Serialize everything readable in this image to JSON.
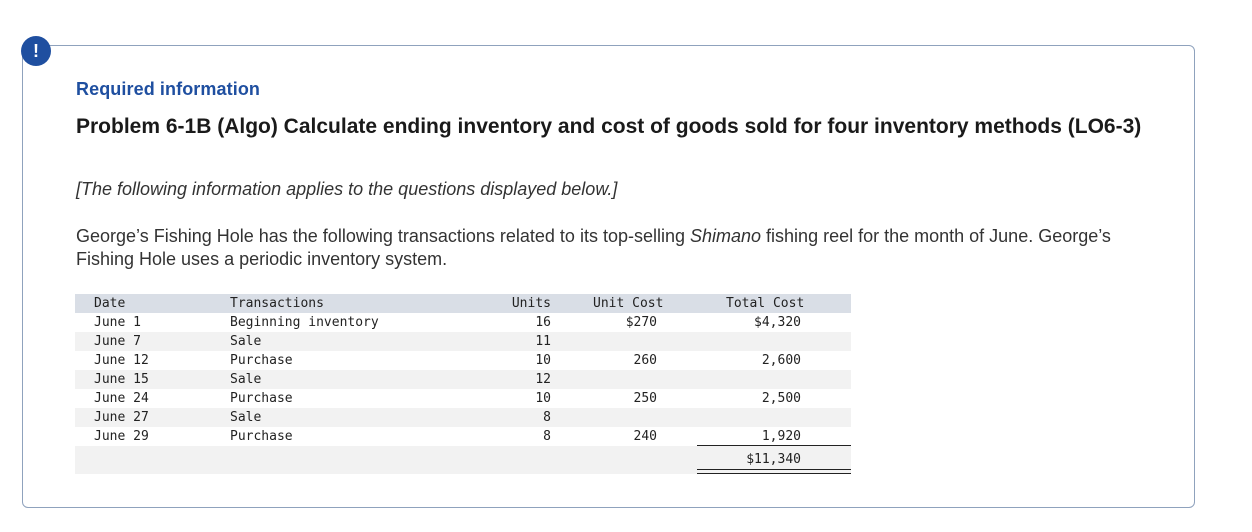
{
  "badge": "!",
  "required_label": "Required information",
  "problem_title": "Problem 6-1B (Algo) Calculate ending inventory and cost of goods sold for four inventory methods (LO6-3)",
  "applies_note": "[The following information applies to the questions displayed below.]",
  "description": {
    "part1": "George’s Fishing Hole has the following transactions related to its top-selling ",
    "brand": "Shimano",
    "part2": " fishing reel for the month of June. George’s Fishing Hole uses a periodic inventory system."
  },
  "table": {
    "headers": {
      "date": "Date",
      "transactions": "Transactions",
      "units": "Units",
      "unit_cost": "Unit Cost",
      "total_cost": "Total Cost"
    },
    "rows": [
      {
        "date": "June 1",
        "transaction": "Beginning inventory",
        "units": "16",
        "unit_cost": "$270",
        "total_cost": "$4,320"
      },
      {
        "date": "June 7",
        "transaction": "Sale",
        "units": "11",
        "unit_cost": "",
        "total_cost": ""
      },
      {
        "date": "June 12",
        "transaction": "Purchase",
        "units": "10",
        "unit_cost": "260",
        "total_cost": "2,600"
      },
      {
        "date": "June 15",
        "transaction": "Sale",
        "units": "12",
        "unit_cost": "",
        "total_cost": ""
      },
      {
        "date": "June 24",
        "transaction": "Purchase",
        "units": "10",
        "unit_cost": "250",
        "total_cost": "2,500"
      },
      {
        "date": "June 27",
        "transaction": "Sale",
        "units": "8",
        "unit_cost": "",
        "total_cost": ""
      },
      {
        "date": "June 29",
        "transaction": "Purchase",
        "units": "8",
        "unit_cost": "240",
        "total_cost": "1,920"
      }
    ],
    "grand_total": "$11,340"
  }
}
